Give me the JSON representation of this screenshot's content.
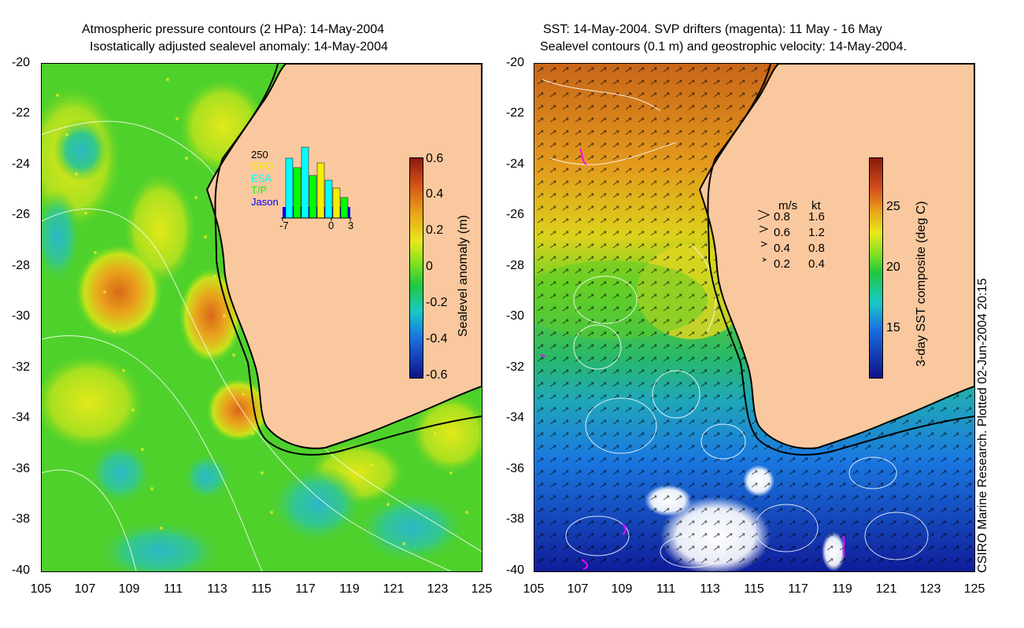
{
  "left_panel": {
    "title_line1": "Atmospheric pressure contours (2 HPa): 14-May-2004",
    "title_line2": "Isostatically adjusted sealevel anomaly: 14-May-2004",
    "colorbar_label": "Sealevel anomaly (m)",
    "colorbar_ticks": [
      "0.6",
      "0.4",
      "0.2",
      "0",
      "-0.2",
      "-0.4",
      "-0.6"
    ],
    "inset": {
      "ymax_label": "250",
      "legend": [
        {
          "label": "GFO",
          "color": "#f0f000"
        },
        {
          "label": "ESA",
          "color": "#00ffff"
        },
        {
          "label": "T/P",
          "color": "#00ff00"
        },
        {
          "label": "Jason",
          "color": "#0000ff"
        }
      ],
      "x_ticks": [
        "-7",
        "0",
        "3"
      ]
    }
  },
  "right_panel": {
    "title_line1": "SST: 14-May-2004. SVP drifters (magenta): 11 May - 16 May",
    "title_line2": "Sealevel contours (0.1 m) and geostrophic velocity: 14-May-2004.",
    "colorbar_label": "3-day SST composite (deg C)",
    "colorbar_ticks": [
      "25",
      "20",
      "15"
    ],
    "velocity_legend": {
      "header_ms": "m/s",
      "header_kt": "kt",
      "rows": [
        {
          "ms": "0.8",
          "kt": "1.6"
        },
        {
          "ms": "0.6",
          "kt": "1.2"
        },
        {
          "ms": "0.4",
          "kt": "0.8"
        },
        {
          "ms": "0.2",
          "kt": "0.4"
        }
      ]
    }
  },
  "axes": {
    "y_ticks": [
      "-20",
      "-22",
      "-24",
      "-26",
      "-28",
      "-30",
      "-32",
      "-34",
      "-36",
      "-38",
      "-40"
    ],
    "x_ticks": [
      "105",
      "107",
      "109",
      "111",
      "113",
      "115",
      "117",
      "119",
      "121",
      "123",
      "125"
    ]
  },
  "credit": "CSIRO Marine Research. Plotted 02-Jun-2004 20:15",
  "colors": {
    "land": "#fac89e",
    "ocean_green": "#4fd12c",
    "anomaly_high": "#e07a10",
    "sst_warm": "#d9781a",
    "sst_cold": "#1a3ad0"
  }
}
